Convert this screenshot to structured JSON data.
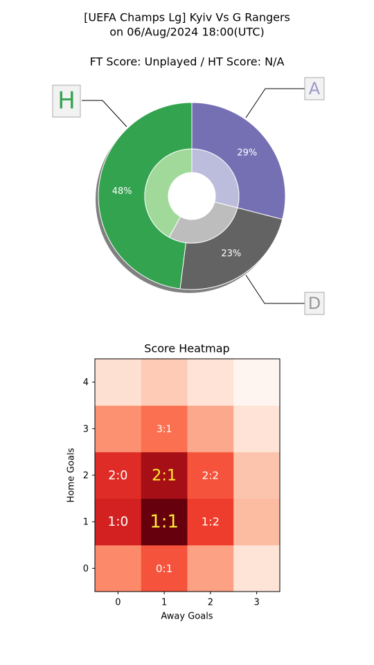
{
  "chart_data": [
    {
      "type": "donut",
      "title": [
        "[UEFA Champs Lg] Kyiv Vs G Rangers",
        "on 06/Aug/2024 18:00(UTC)"
      ],
      "subtitle": "FT Score: Unplayed / HT Score: N/A",
      "categories": [
        "H",
        "D",
        "A"
      ],
      "values": [
        48,
        23,
        29
      ],
      "value_labels": [
        "48%",
        "23%",
        "29%"
      ],
      "colors": [
        "#33a350",
        "#636363",
        "#7570b3"
      ],
      "inner_values": [
        42,
        29,
        29
      ],
      "inner_colors": [
        "#a1d99b",
        "#bdbdbd",
        "#bcbddc"
      ],
      "label_colors": [
        "#33a350",
        "#999999",
        "#9b98c8"
      ],
      "shadow": true
    },
    {
      "type": "heatmap",
      "title": "Score Heatmap",
      "xlabel": "Away Goals",
      "ylabel": "Home Goals",
      "x": [
        0,
        1,
        2,
        3
      ],
      "y": [
        0,
        1,
        2,
        3,
        4
      ],
      "colormap": "Reds",
      "values": [
        [
          5.8,
          8.0,
          4.8,
          1.7
        ],
        [
          10.2,
          14.0,
          8.8,
          3.7
        ],
        [
          9.6,
          12.3,
          8.0,
          3.3
        ],
        [
          5.5,
          6.9,
          4.5,
          1.8
        ],
        [
          2.0,
          3.0,
          1.8,
          0.3
        ]
      ],
      "cell_labels": [
        [
          null,
          "0:1",
          null,
          null
        ],
        [
          "1:0",
          "1:1",
          "1:2",
          null
        ],
        [
          "2:0",
          "2:1",
          "2:2",
          null
        ],
        [
          null,
          "3:1",
          null,
          null
        ],
        [
          null,
          null,
          null,
          null
        ]
      ]
    }
  ]
}
